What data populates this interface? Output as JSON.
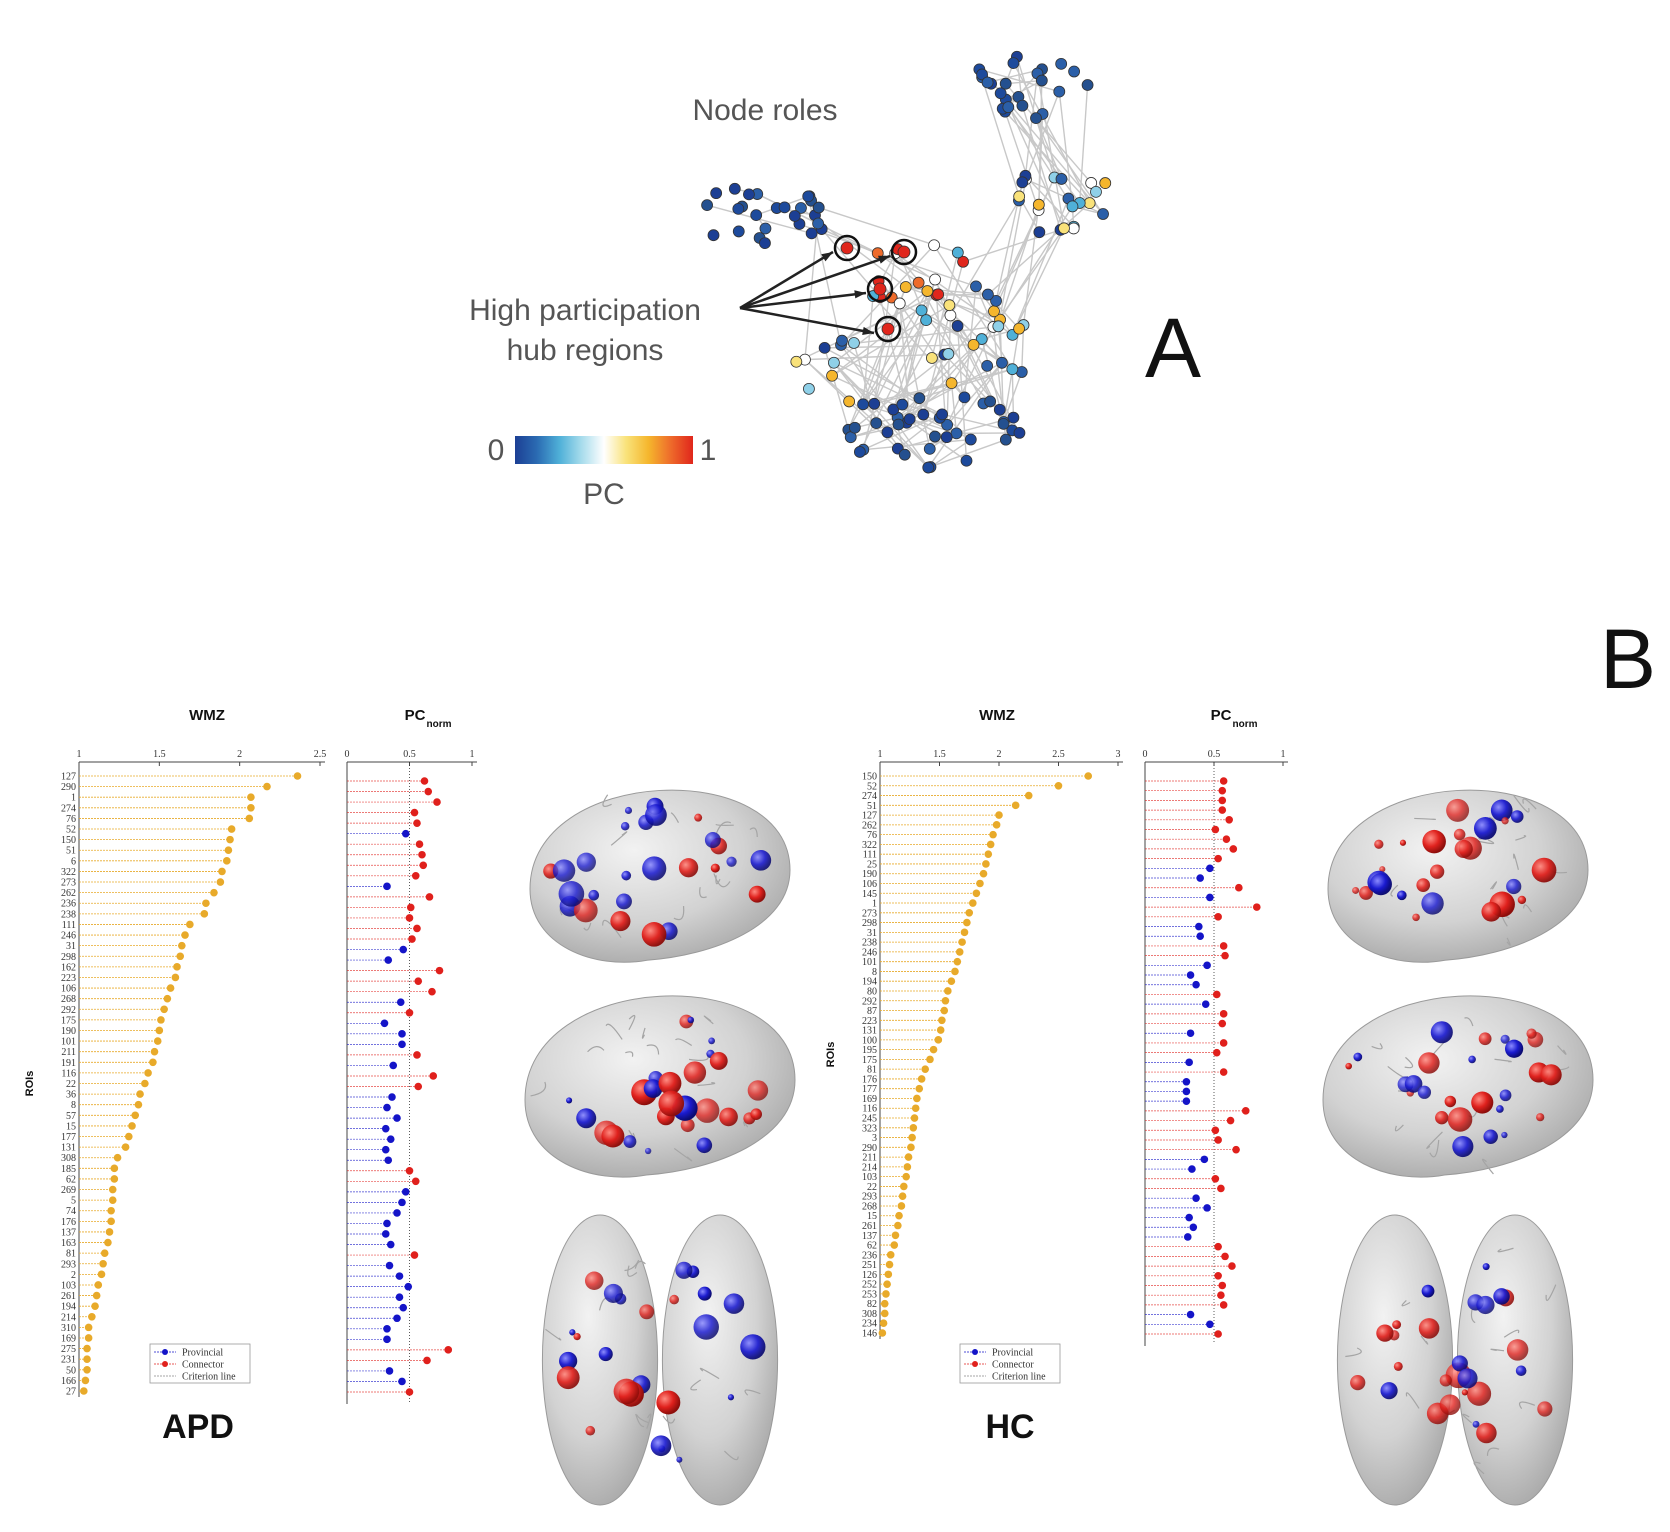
{
  "panel_a": {
    "title": "Node roles",
    "callout_line1": "High participation",
    "callout_line2": "hub regions",
    "panel_label": "A",
    "colorbar": {
      "min_label": "0",
      "max_label": "1",
      "label": "PC",
      "stops": [
        "#1c3f94",
        "#2b6cb3",
        "#4fb0d8",
        "#a8dcec",
        "#ffffff",
        "#f9e27a",
        "#f5b62d",
        "#ee6b2b",
        "#e0261c"
      ]
    }
  },
  "panel_b": {
    "panel_label": "B"
  },
  "colors": {
    "wmz": "#e8aa2a",
    "provincial": "#1414c8",
    "connector": "#e0201c",
    "brain": "#c9c9c9"
  },
  "legend": {
    "provincial": "Provincial",
    "connector": "Connector",
    "criterion": "Criterion line"
  },
  "chart_data": [
    {
      "type": "scatter",
      "group": "APD",
      "title": "WMZ",
      "xlim": [
        1,
        2.5
      ],
      "xticks": [
        "1",
        "1.5",
        "2",
        "2.5"
      ],
      "ylabel": "ROIs",
      "rois": [
        "127",
        "290",
        "1",
        "274",
        "76",
        "52",
        "150",
        "51",
        "6",
        "322",
        "273",
        "262",
        "236",
        "238",
        "111",
        "246",
        "31",
        "298",
        "162",
        "223",
        "106",
        "268",
        "292",
        "175",
        "190",
        "101",
        "211",
        "191",
        "116",
        "22",
        "36",
        "8",
        "57",
        "15",
        "177",
        "131",
        "308",
        "185",
        "62",
        "269",
        "5",
        "74",
        "176",
        "137",
        "163",
        "81",
        "293",
        "2",
        "103",
        "261",
        "194",
        "214",
        "310",
        "169",
        "275",
        "231",
        "50",
        "166",
        "27"
      ],
      "values": [
        2.36,
        2.17,
        2.07,
        2.07,
        2.06,
        1.95,
        1.94,
        1.93,
        1.92,
        1.89,
        1.88,
        1.84,
        1.79,
        1.78,
        1.69,
        1.66,
        1.64,
        1.63,
        1.61,
        1.6,
        1.57,
        1.55,
        1.53,
        1.51,
        1.5,
        1.49,
        1.47,
        1.46,
        1.43,
        1.41,
        1.38,
        1.37,
        1.35,
        1.33,
        1.31,
        1.29,
        1.24,
        1.22,
        1.22,
        1.21,
        1.21,
        1.2,
        1.2,
        1.19,
        1.18,
        1.16,
        1.15,
        1.14,
        1.12,
        1.11,
        1.1,
        1.08,
        1.06,
        1.06,
        1.05,
        1.05,
        1.05,
        1.04,
        1.03
      ]
    },
    {
      "type": "scatter",
      "group": "APD",
      "title": "PC",
      "title_sub": "norm",
      "xlim": [
        0,
        1
      ],
      "xticks": [
        "0",
        "0.5",
        "1"
      ],
      "criterion": 0.5,
      "values": [
        0.62,
        0.65,
        0.72,
        0.54,
        0.56,
        0.47,
        0.58,
        0.6,
        0.61,
        0.55,
        0.32,
        0.66,
        0.51,
        0.5,
        0.56,
        0.52,
        0.45,
        0.33,
        0.74,
        0.57,
        0.68,
        0.43,
        0.5,
        0.3,
        0.44,
        0.44,
        0.56,
        0.37,
        0.69,
        0.57,
        0.36,
        0.32,
        0.4,
        0.31,
        0.35,
        0.31,
        0.33,
        0.5,
        0.55,
        0.47,
        0.44,
        0.4,
        0.32,
        0.31,
        0.35,
        0.54,
        0.34,
        0.42,
        0.49,
        0.42,
        0.45,
        0.4,
        0.32,
        0.32,
        0.81,
        0.64,
        0.34,
        0.44,
        0.5
      ]
    },
    {
      "type": "scatter",
      "group": "HC",
      "title": "WMZ",
      "xlim": [
        1,
        3
      ],
      "xticks": [
        "1",
        "1.5",
        "2",
        "2.5",
        "3"
      ],
      "ylabel": "ROIs",
      "rois": [
        "150",
        "52",
        "274",
        "51",
        "127",
        "262",
        "76",
        "322",
        "111",
        "25",
        "190",
        "106",
        "145",
        "1",
        "273",
        "298",
        "31",
        "238",
        "246",
        "101",
        "8",
        "194",
        "80",
        "292",
        "87",
        "223",
        "131",
        "100",
        "195",
        "175",
        "81",
        "176",
        "177",
        "169",
        "116",
        "245",
        "323",
        "3",
        "290",
        "211",
        "214",
        "103",
        "22",
        "293",
        "268",
        "15",
        "261",
        "137",
        "62",
        "236",
        "251",
        "126",
        "252",
        "253",
        "82",
        "308",
        "234",
        "146"
      ],
      "values": [
        2.75,
        2.5,
        2.25,
        2.14,
        2.0,
        1.98,
        1.95,
        1.93,
        1.91,
        1.89,
        1.87,
        1.84,
        1.81,
        1.78,
        1.75,
        1.73,
        1.71,
        1.69,
        1.67,
        1.65,
        1.63,
        1.6,
        1.57,
        1.55,
        1.54,
        1.52,
        1.51,
        1.49,
        1.45,
        1.42,
        1.38,
        1.35,
        1.33,
        1.31,
        1.3,
        1.29,
        1.28,
        1.27,
        1.26,
        1.24,
        1.23,
        1.22,
        1.2,
        1.19,
        1.18,
        1.16,
        1.15,
        1.13,
        1.12,
        1.09,
        1.08,
        1.07,
        1.06,
        1.05,
        1.04,
        1.04,
        1.03,
        1.02
      ]
    },
    {
      "type": "scatter",
      "group": "HC",
      "title": "PC",
      "title_sub": "norm",
      "xlim": [
        0,
        1
      ],
      "xticks": [
        "0",
        "0.5",
        "1"
      ],
      "criterion": 0.5,
      "values": [
        0.57,
        0.56,
        0.56,
        0.56,
        0.61,
        0.51,
        0.59,
        0.64,
        0.53,
        0.47,
        0.4,
        0.68,
        0.47,
        0.81,
        0.53,
        0.39,
        0.4,
        0.57,
        0.58,
        0.45,
        0.33,
        0.37,
        0.52,
        0.44,
        0.57,
        0.56,
        0.33,
        0.57,
        0.52,
        0.32,
        0.57,
        0.3,
        0.3,
        0.3,
        0.73,
        0.62,
        0.51,
        0.53,
        0.66,
        0.43,
        0.34,
        0.51,
        0.55,
        0.37,
        0.45,
        0.32,
        0.35,
        0.31,
        0.53,
        0.58,
        0.63,
        0.53,
        0.56,
        0.55,
        0.57,
        0.33,
        0.47,
        0.53
      ]
    }
  ],
  "group_labels": {
    "apd": "APD",
    "hc": "HC"
  }
}
